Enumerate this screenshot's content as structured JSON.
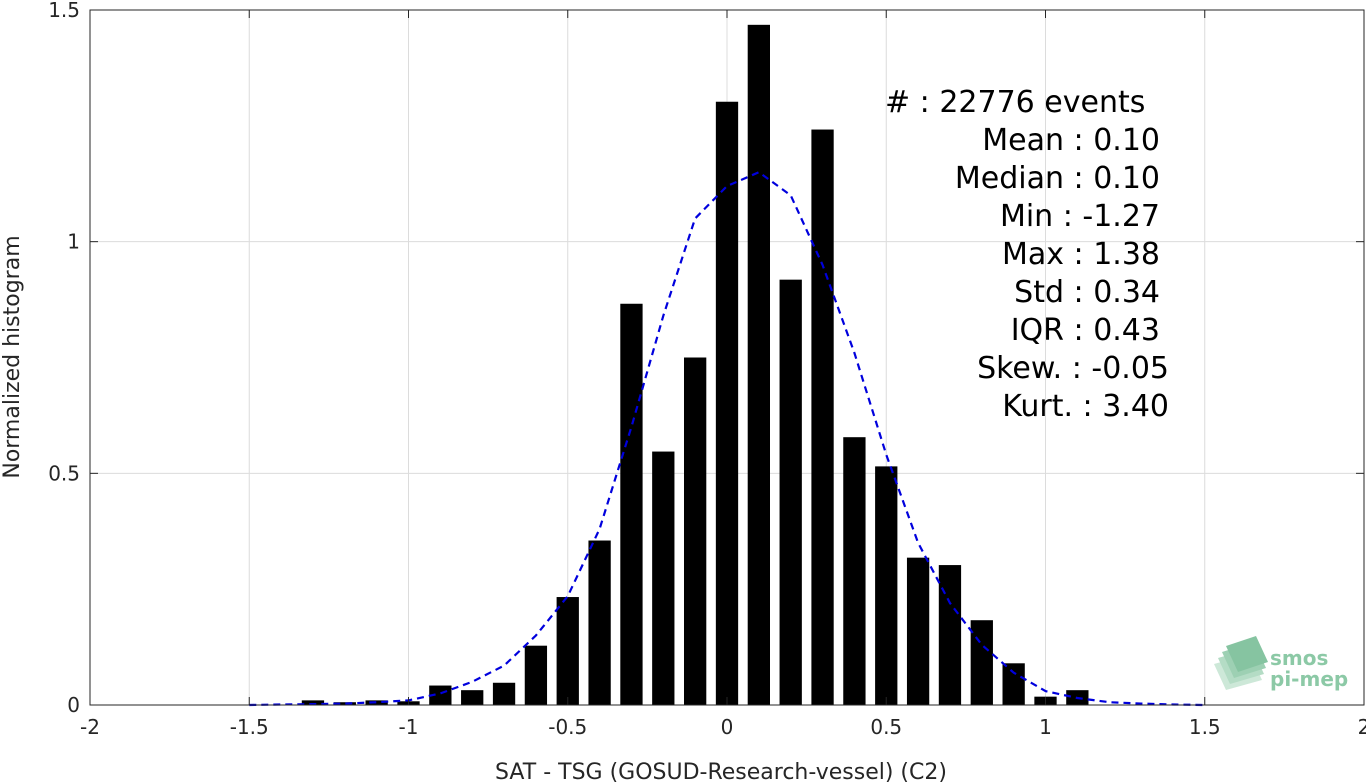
{
  "chart_data": {
    "type": "bar",
    "xlabel": "SAT - TSG (GOSUD-Research-vessel) (C2)",
    "ylabel": "Normalized histogram",
    "xlim": [
      -2,
      2
    ],
    "ylim": [
      0,
      1.5
    ],
    "grid": true,
    "x_ticks": [
      "-2",
      "-1.5",
      "-1",
      "-0.5",
      "0",
      "0.5",
      "1",
      "1.5",
      "2"
    ],
    "y_ticks": [
      "0",
      "0.5",
      "1",
      "1.5"
    ],
    "bar_width": 0.07,
    "x": [
      -1.3,
      -1.2,
      -1.1,
      -1.0,
      -0.9,
      -0.8,
      -0.7,
      -0.6,
      -0.5,
      -0.4,
      -0.3,
      -0.2,
      -0.1,
      0.0,
      0.1,
      0.2,
      0.3,
      0.4,
      0.5,
      0.6,
      0.7,
      0.8,
      0.9,
      1.0,
      1.1
    ],
    "values": [
      0.01,
      0.006,
      0.01,
      0.008,
      0.042,
      0.032,
      0.048,
      0.128,
      0.233,
      0.355,
      0.866,
      0.547,
      0.75,
      1.302,
      1.468,
      0.918,
      1.242,
      0.578,
      0.515,
      0.318,
      0.302,
      0.183,
      0.09,
      0.018,
      0.032
    ],
    "fit_curve": {
      "style": "dashed",
      "color": "#0000dd",
      "x": [
        -1.5,
        -1.4,
        -1.3,
        -1.2,
        -1.1,
        -1.0,
        -0.9,
        -0.8,
        -0.7,
        -0.6,
        -0.5,
        -0.4,
        -0.3,
        -0.2,
        -0.1,
        0.0,
        0.1,
        0.2,
        0.3,
        0.4,
        0.5,
        0.6,
        0.7,
        0.8,
        0.9,
        1.0,
        1.1,
        1.2,
        1.3,
        1.4,
        1.5
      ],
      "y": [
        0.0,
        0.001,
        0.002,
        0.003,
        0.006,
        0.01,
        0.025,
        0.05,
        0.085,
        0.15,
        0.235,
        0.38,
        0.6,
        0.84,
        1.05,
        1.12,
        1.15,
        1.1,
        0.95,
        0.76,
        0.54,
        0.35,
        0.22,
        0.13,
        0.07,
        0.03,
        0.015,
        0.006,
        0.003,
        0.001,
        0.0
      ]
    },
    "colors": {
      "bars": "#000000",
      "curve": "#0000dd"
    }
  },
  "stats": [
    {
      "label": "#  : 22776 events"
    },
    {
      "label": "Mean : 0.10"
    },
    {
      "label": "Median : 0.10"
    },
    {
      "label": "Min : -1.27"
    },
    {
      "label": "Max : 1.38"
    },
    {
      "label": "Std : 0.34"
    },
    {
      "label": "IQR : 0.43"
    },
    {
      "label": "Skew. : -0.05"
    },
    {
      "label": "Kurt. : 3.40"
    }
  ],
  "logo": {
    "line1": "smos",
    "line2": "pi-mep"
  }
}
